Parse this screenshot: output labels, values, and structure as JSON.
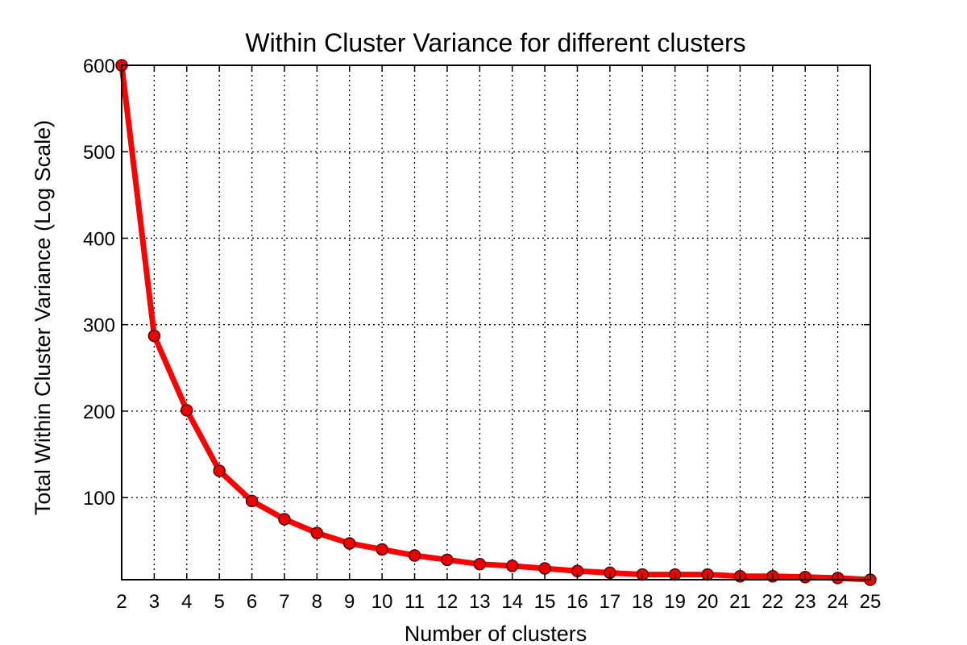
{
  "chart_data": {
    "type": "line",
    "title": "Within Cluster Variance for different clusters",
    "xlabel": "Number of clusters",
    "ylabel": "Total Within Cluster Variance (Log Scale)",
    "x": [
      2,
      3,
      4,
      5,
      6,
      7,
      8,
      9,
      10,
      11,
      12,
      13,
      14,
      15,
      16,
      17,
      18,
      19,
      20,
      21,
      22,
      23,
      24,
      25
    ],
    "series": [
      {
        "values": [
          600,
          287,
          201,
          131,
          96,
          75,
          59,
          47,
          40,
          33,
          28,
          23,
          21,
          18,
          15,
          13,
          11,
          11,
          11,
          9,
          9,
          8,
          7,
          5
        ]
      }
    ],
    "xlim": [
      2,
      25
    ],
    "ylim": [
      5,
      600
    ],
    "yticks": [
      100,
      200,
      300,
      400,
      500,
      600
    ],
    "grid": true,
    "colors": {
      "line": "#ff0000",
      "marker_fill": "#ee0000",
      "marker_edge": "#550000"
    }
  }
}
